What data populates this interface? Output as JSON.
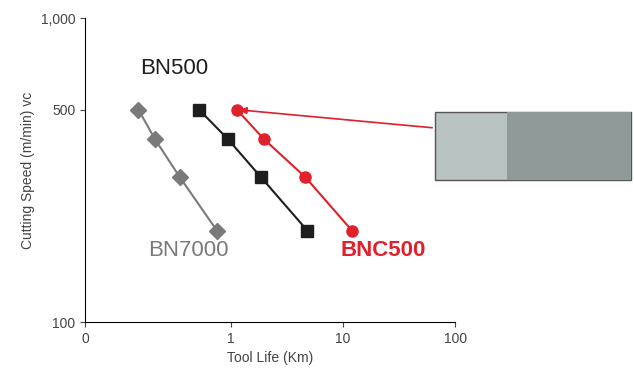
{
  "chart_data": {
    "type": "line",
    "x_label": "Tool Life (Km)",
    "y_label": "Cutting Speed (m/min) vc",
    "log": true,
    "xlim": [
      0.05,
      100
    ],
    "xticks": [
      {
        "value": 0.05,
        "label": "0"
      },
      1,
      10,
      100
    ],
    "ylim": [
      100,
      1000
    ],
    "yticks": [
      100,
      500,
      {
        "value": 1000,
        "label": "1,000"
      }
    ],
    "grid": false,
    "series": [
      {
        "name": "BN7000",
        "color": "#7a7a7a",
        "marker": "diamond",
        "line_style": "solid",
        "x": [
          0.15,
          0.21,
          0.35,
          0.75
        ],
        "values": [
          500,
          400,
          300,
          200
        ]
      },
      {
        "name": "BN500",
        "color": "#1e1e1e",
        "marker": "square",
        "line_style": "solid",
        "x": [
          0.52,
          0.94,
          1.85,
          4.8
        ],
        "values": [
          500,
          400,
          300,
          200
        ]
      },
      {
        "name": "BNC500",
        "color": "#e0202a",
        "marker": "circle",
        "line_style": "solid",
        "x": [
          1.13,
          1.97,
          4.6,
          12
        ],
        "values": [
          500,
          400,
          300,
          200
        ]
      }
    ]
  }
}
